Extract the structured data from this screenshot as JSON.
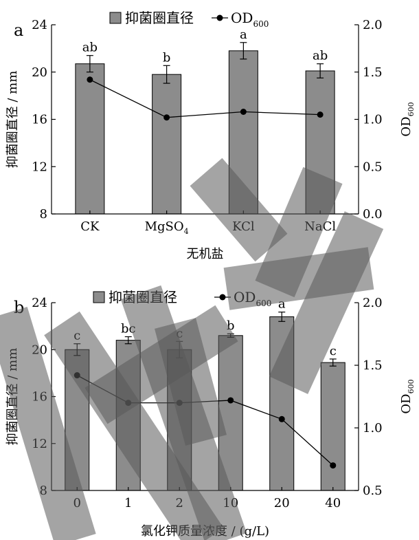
{
  "chart_data": [
    {
      "type": "bar",
      "panel_label": "a",
      "legend": {
        "bar_label": "抑菌圈直径",
        "line_label": "OD",
        "line_sub": "600"
      },
      "categories": [
        {
          "main": "CK",
          "sub": ""
        },
        {
          "main": "MgSO",
          "sub": "4"
        },
        {
          "main": "KCl",
          "sub": ""
        },
        {
          "main": "NaCl",
          "sub": ""
        }
      ],
      "series": [
        {
          "values": [
            20.7,
            19.8,
            21.8,
            20.1
          ],
          "errors": [
            0.7,
            0.75,
            0.7,
            0.6
          ],
          "letters": [
            "ab",
            "b",
            "a",
            "ab"
          ]
        },
        {
          "values": [
            1.42,
            1.02,
            1.08,
            1.05
          ]
        }
      ],
      "xlabel": "无机盐",
      "ylabel": "抑菌圈直径 / mm",
      "y2label": {
        "main": "OD",
        "sub": "600"
      },
      "ylim": [
        8,
        24
      ],
      "yticks": [
        "8",
        "12",
        "16",
        "20",
        "24"
      ],
      "y2lim": [
        0.0,
        2.0
      ],
      "y2ticks": [
        "0.0",
        "0.5",
        "1.0",
        "1.5",
        "2.0"
      ]
    },
    {
      "type": "bar",
      "panel_label": "b",
      "legend": {
        "bar_label": "抑菌圈直径",
        "line_label": "OD",
        "line_sub": "600"
      },
      "categories": [
        {
          "main": "0",
          "sub": ""
        },
        {
          "main": "1",
          "sub": ""
        },
        {
          "main": "2",
          "sub": ""
        },
        {
          "main": "10",
          "sub": ""
        },
        {
          "main": "20",
          "sub": ""
        },
        {
          "main": "40",
          "sub": ""
        }
      ],
      "series": [
        {
          "values": [
            20.0,
            20.8,
            20.0,
            21.2,
            22.8,
            18.9
          ],
          "errors": [
            0.5,
            0.3,
            0.7,
            0.15,
            0.4,
            0.3
          ],
          "letters": [
            "c",
            "bc",
            "c",
            "b",
            "a",
            "c"
          ]
        },
        {
          "values": [
            1.42,
            1.2,
            1.2,
            1.22,
            1.07,
            0.7
          ]
        }
      ],
      "xlabel": "氯化钾质量浓度 / (g/L)",
      "ylabel": "抑菌圈直径 / mm",
      "y2label": {
        "main": "OD",
        "sub": "600"
      },
      "ylim": [
        8,
        24
      ],
      "yticks": [
        "8",
        "12",
        "16",
        "20",
        "24"
      ],
      "y2lim": [
        0.5,
        2.0
      ],
      "y2ticks": [
        "0.5",
        "1.0",
        "1.5",
        "2.0"
      ]
    }
  ]
}
